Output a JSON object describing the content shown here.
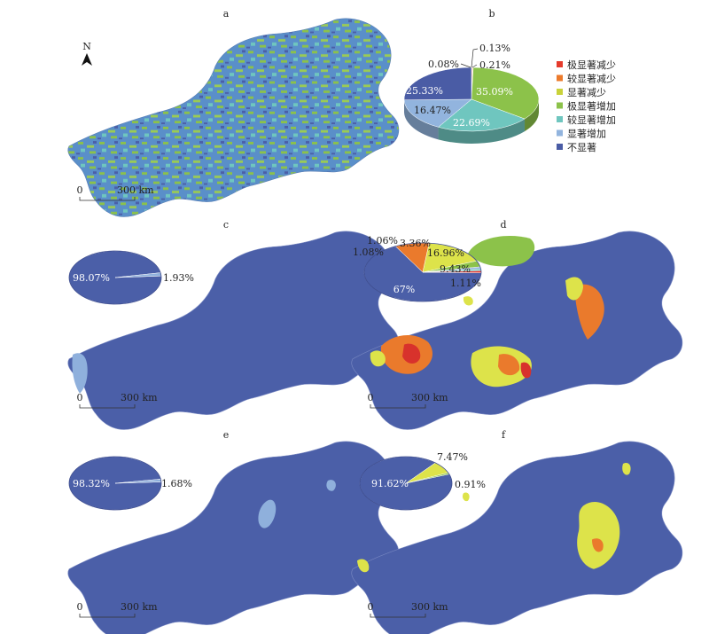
{
  "panels": {
    "a": {
      "letter": "a",
      "scale": {
        "zero": "0",
        "distance": "300 km"
      },
      "north": "N"
    },
    "b": {
      "letter": "b"
    },
    "c": {
      "letter": "c",
      "scale": {
        "zero": "0",
        "distance": "300 km"
      }
    },
    "d": {
      "letter": "d",
      "scale": {
        "zero": "0",
        "distance": "300 km"
      }
    },
    "e": {
      "letter": "e",
      "scale": {
        "zero": "0",
        "distance": "300 km"
      }
    },
    "f": {
      "letter": "f",
      "scale": {
        "zero": "0",
        "distance": "300 km"
      }
    }
  },
  "legend": [
    {
      "label": "极显著减少",
      "color": "#e53b2c"
    },
    {
      "label": "较显著减少",
      "color": "#ec7a2b"
    },
    {
      "label": "显著减少",
      "color": "#c9d23a"
    },
    {
      "label": "极显著增加",
      "color": "#8cc24a"
    },
    {
      "label": "较显著增加",
      "color": "#6fc6bf"
    },
    {
      "label": "显著增加",
      "color": "#92b4de"
    },
    {
      "label": "不显著",
      "color": "#4a5ca5"
    }
  ],
  "colors": {
    "blue": "#4b5fa8",
    "lightblue": "#8fb0dc",
    "green": "#8cc24a",
    "yellow": "#dde34a",
    "orange": "#ea7a2c",
    "red": "#d8322c",
    "teal": "#6fc6bf"
  },
  "chart_data": [
    {
      "panel": "b",
      "type": "pie",
      "labels": [
        "极显著减少",
        "较显著减少",
        "显著减少",
        "极显著增加",
        "较显著增加",
        "显著增加",
        "不显著"
      ],
      "values": [
        0.13,
        0.21,
        0.08,
        35.09,
        22.69,
        16.47,
        25.33
      ],
      "value_labels": [
        "0.13%",
        "0.21%",
        "0.08%",
        "35.09%",
        "22.69%",
        "16.47%",
        "25.33%"
      ]
    },
    {
      "panel": "c",
      "type": "pie",
      "values": [
        98.07,
        1.93
      ],
      "value_labels": [
        "98.07%",
        "1.93%"
      ]
    },
    {
      "panel": "d",
      "type": "pie",
      "values": [
        67,
        9.43,
        16.96,
        3.36,
        1.06,
        1.08,
        1.11
      ],
      "value_labels": [
        "67%",
        "9.43%",
        "16.96%",
        "3.36%",
        "1.06%",
        "1.08%",
        "1.11%"
      ]
    },
    {
      "panel": "e",
      "type": "pie",
      "values": [
        98.32,
        1.68
      ],
      "value_labels": [
        "98.32%",
        "1.68%"
      ]
    },
    {
      "panel": "f",
      "type": "pie",
      "values": [
        91.62,
        7.47,
        0.91
      ],
      "value_labels": [
        "91.62%",
        "7.47%",
        "0.91%"
      ]
    }
  ]
}
